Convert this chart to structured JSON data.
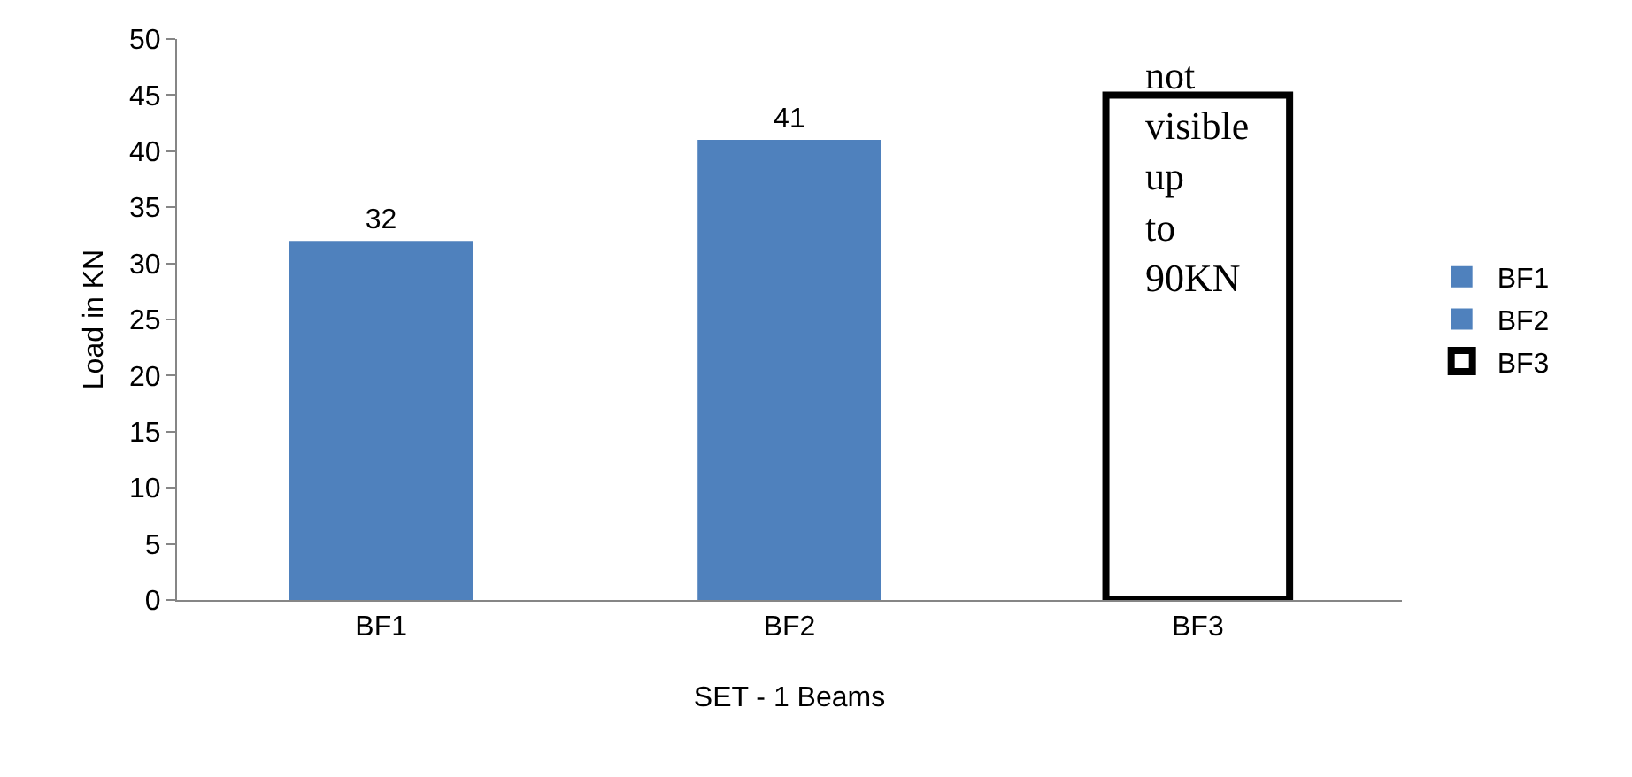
{
  "chart_data": {
    "type": "bar",
    "xlabel": "SET - 1 Beams",
    "ylabel": "Load in KN",
    "categories": [
      "BF1",
      "BF2",
      "BF3"
    ],
    "series": [
      {
        "name": "BF1",
        "color": "#4f81bd",
        "values": [
          32,
          null,
          null
        ],
        "value_labels": [
          "32",
          null,
          null
        ]
      },
      {
        "name": "BF2",
        "color": "#4f81bd",
        "values": [
          null,
          41,
          null
        ],
        "value_labels": [
          null,
          "41",
          null
        ]
      },
      {
        "name": "BF3",
        "color": "#000000",
        "line_style": "solid",
        "values": [
          null,
          null,
          45
        ]
      }
    ],
    "ylim": [
      0,
      50
    ],
    "yticks": [
      0,
      5,
      10,
      15,
      20,
      25,
      30,
      35,
      40,
      45,
      50
    ],
    "grid": false,
    "legend": "right",
    "annotations": [
      {
        "text": "not visible up to 90KN",
        "x": "BF3",
        "y": 45
      }
    ]
  }
}
